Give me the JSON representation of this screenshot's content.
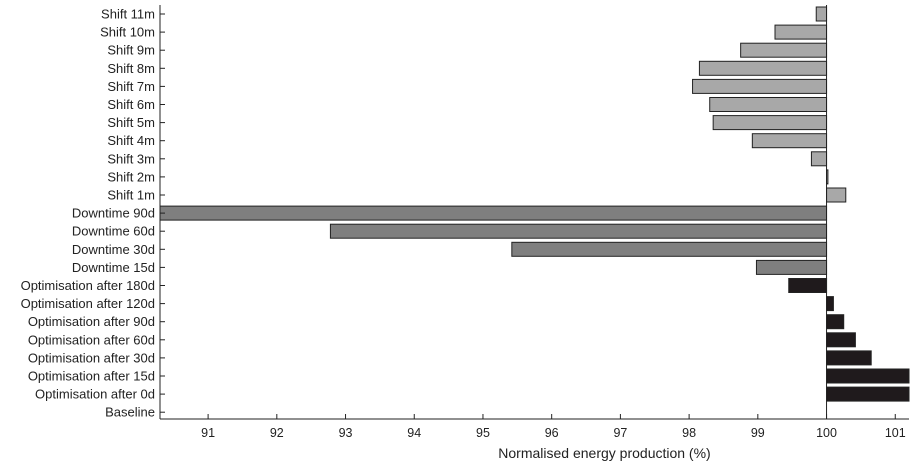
{
  "chart_data": {
    "type": "bar",
    "orientation": "horizontal",
    "title": "",
    "xlabel": "Normalised energy production (%)",
    "ylabel": "",
    "xlim": [
      90.3,
      101.2
    ],
    "xticks": [
      91,
      92,
      93,
      94,
      95,
      96,
      97,
      98,
      99,
      100,
      101
    ],
    "baseline_value": 100,
    "grid": false,
    "legend": "none",
    "categories": [
      "Shift 11m",
      "Shift 10m",
      "Shift 9m",
      "Shift 8m",
      "Shift 7m",
      "Shift 6m",
      "Shift 5m",
      "Shift 4m",
      "Shift 3m",
      "Shift 2m",
      "Shift 1m",
      "Downtime 90d",
      "Downtime 60d",
      "Downtime 30d",
      "Downtime 15d",
      "Optimisation after 180d",
      "Optimisation after 120d",
      "Optimisation after 90d",
      "Optimisation after 60d",
      "Optimisation after 30d",
      "Optimisation after 15d",
      "Optimisation after 0d",
      "Baseline"
    ],
    "values": [
      99.85,
      99.25,
      98.75,
      98.15,
      98.05,
      98.3,
      98.35,
      98.92,
      99.78,
      100.02,
      100.28,
      90.3,
      92.78,
      95.42,
      98.98,
      99.45,
      100.1,
      100.25,
      100.42,
      100.65,
      101.2,
      101.2,
      100
    ],
    "group_colors": {
      "Shift": "#a8a8a8",
      "Downtime": "#7f7f7f",
      "Optimisation": "#1f1a1c",
      "Baseline": "#ffffff"
    }
  }
}
